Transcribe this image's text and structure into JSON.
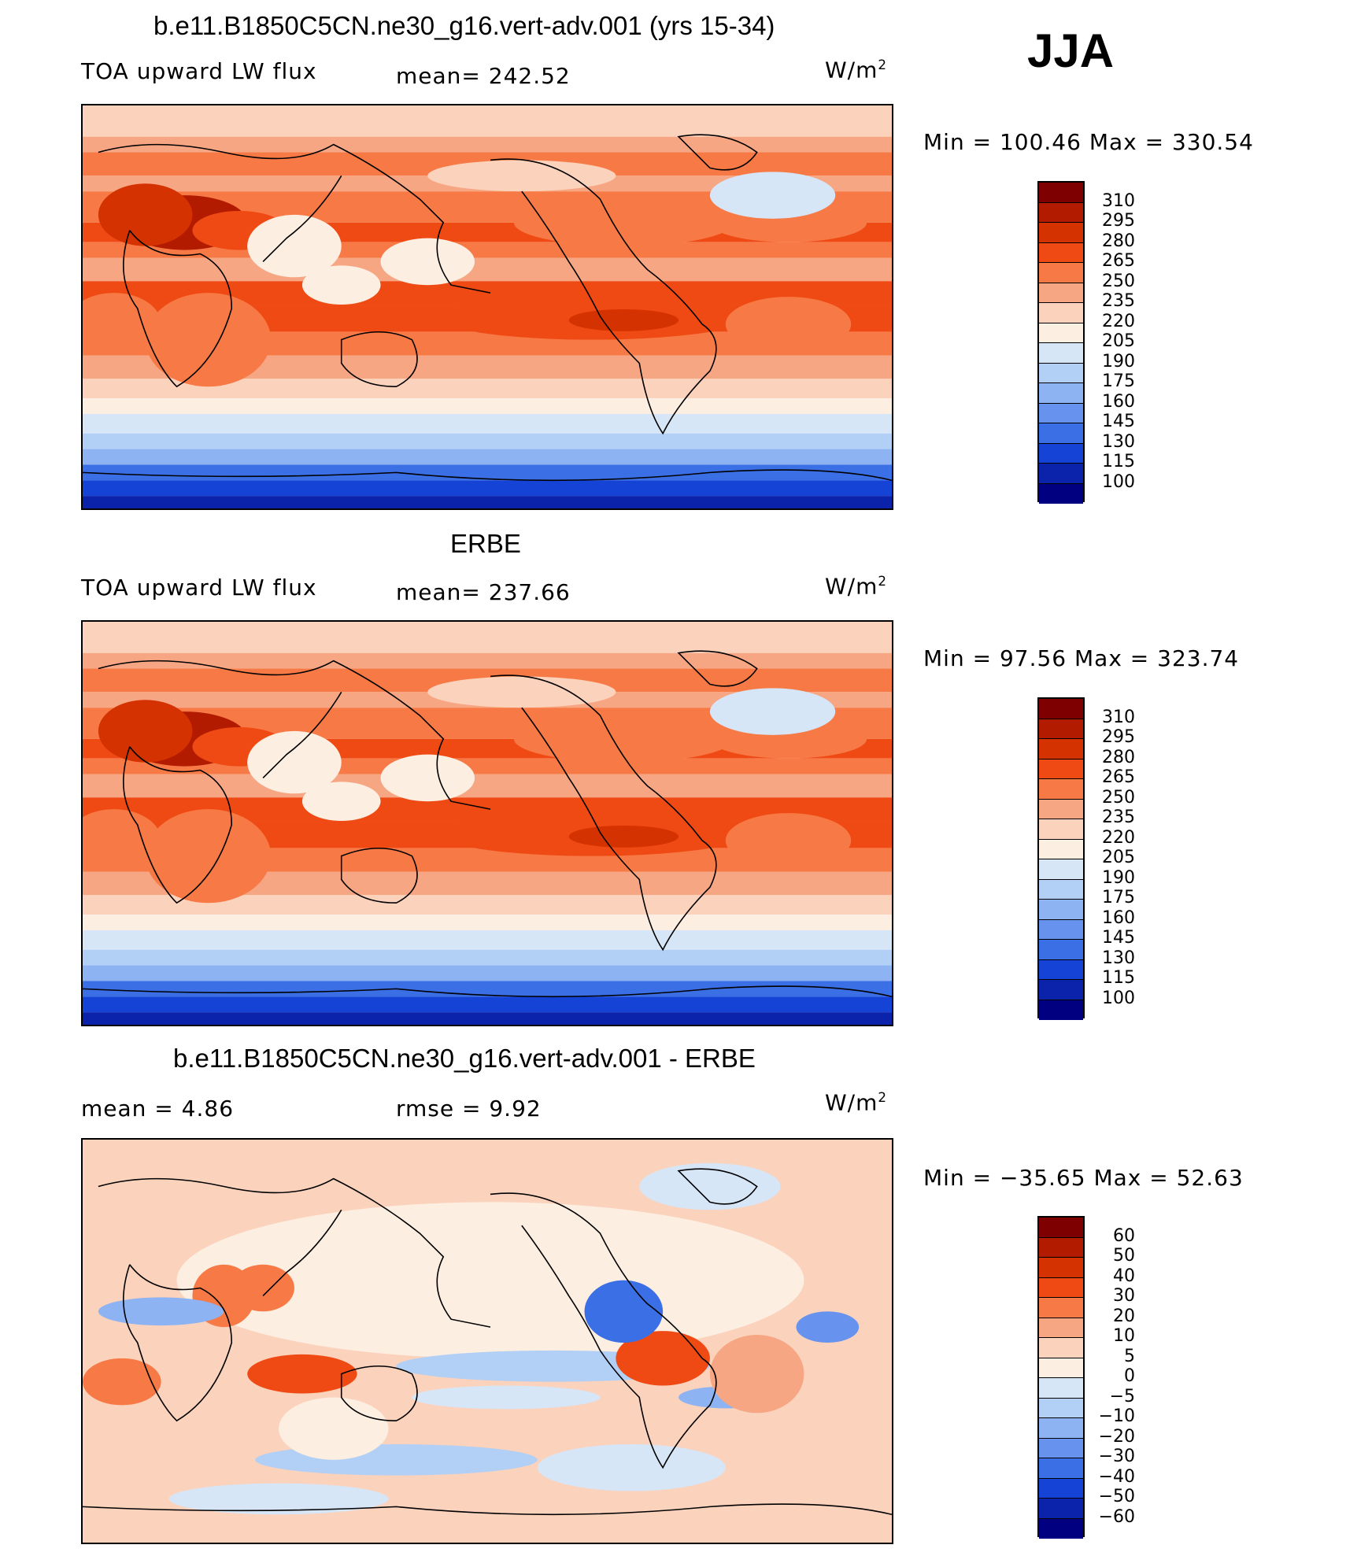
{
  "season": "JJA",
  "panels": [
    {
      "title": "b.e11.B1850C5CN.ne30_g16.vert-adv.001 (yrs 15-34)",
      "left_label": "TOA upward LW flux",
      "center_label": "mean=  242.52",
      "units": "W/m",
      "units_sup": "2",
      "minmax": "Min  =  100.46  Max  =  330.54",
      "levels": [
        "310",
        "295",
        "280",
        "265",
        "250",
        "235",
        "220",
        "205",
        "190",
        "175",
        "160",
        "145",
        "130",
        "115",
        "100"
      ]
    },
    {
      "title": "ERBE",
      "left_label": "TOA upward LW flux",
      "center_label": "mean=  237.66",
      "units": "W/m",
      "units_sup": "2",
      "minmax": "Min  =   97.56  Max  =  323.74",
      "levels": [
        "310",
        "295",
        "280",
        "265",
        "250",
        "235",
        "220",
        "205",
        "190",
        "175",
        "160",
        "145",
        "130",
        "115",
        "100"
      ]
    },
    {
      "title": "b.e11.B1850C5CN.ne30_g16.vert-adv.001 - ERBE",
      "left_label": "mean  =     4.86",
      "center_label": "rmse  =     9.92",
      "units": "W/m",
      "units_sup": "2",
      "minmax": "Min  =  −35.65  Max  =    52.63",
      "levels": [
        "60",
        "50",
        "40",
        "30",
        "20",
        "10",
        "5",
        "0",
        "−5",
        "−10",
        "−20",
        "−30",
        "−40",
        "−50",
        "−60"
      ]
    }
  ],
  "colors": {
    "palette": [
      "#7f0000",
      "#b31b00",
      "#d43200",
      "#f04a14",
      "#f77a46",
      "#f7a683",
      "#fbd2bc",
      "#fdeee2",
      "#d6e6f7",
      "#b2cff5",
      "#8eb3f2",
      "#6793ee",
      "#3b6fe6",
      "#1443d6",
      "#0b23aa",
      "#000080"
    ],
    "coast": "#000000"
  }
}
